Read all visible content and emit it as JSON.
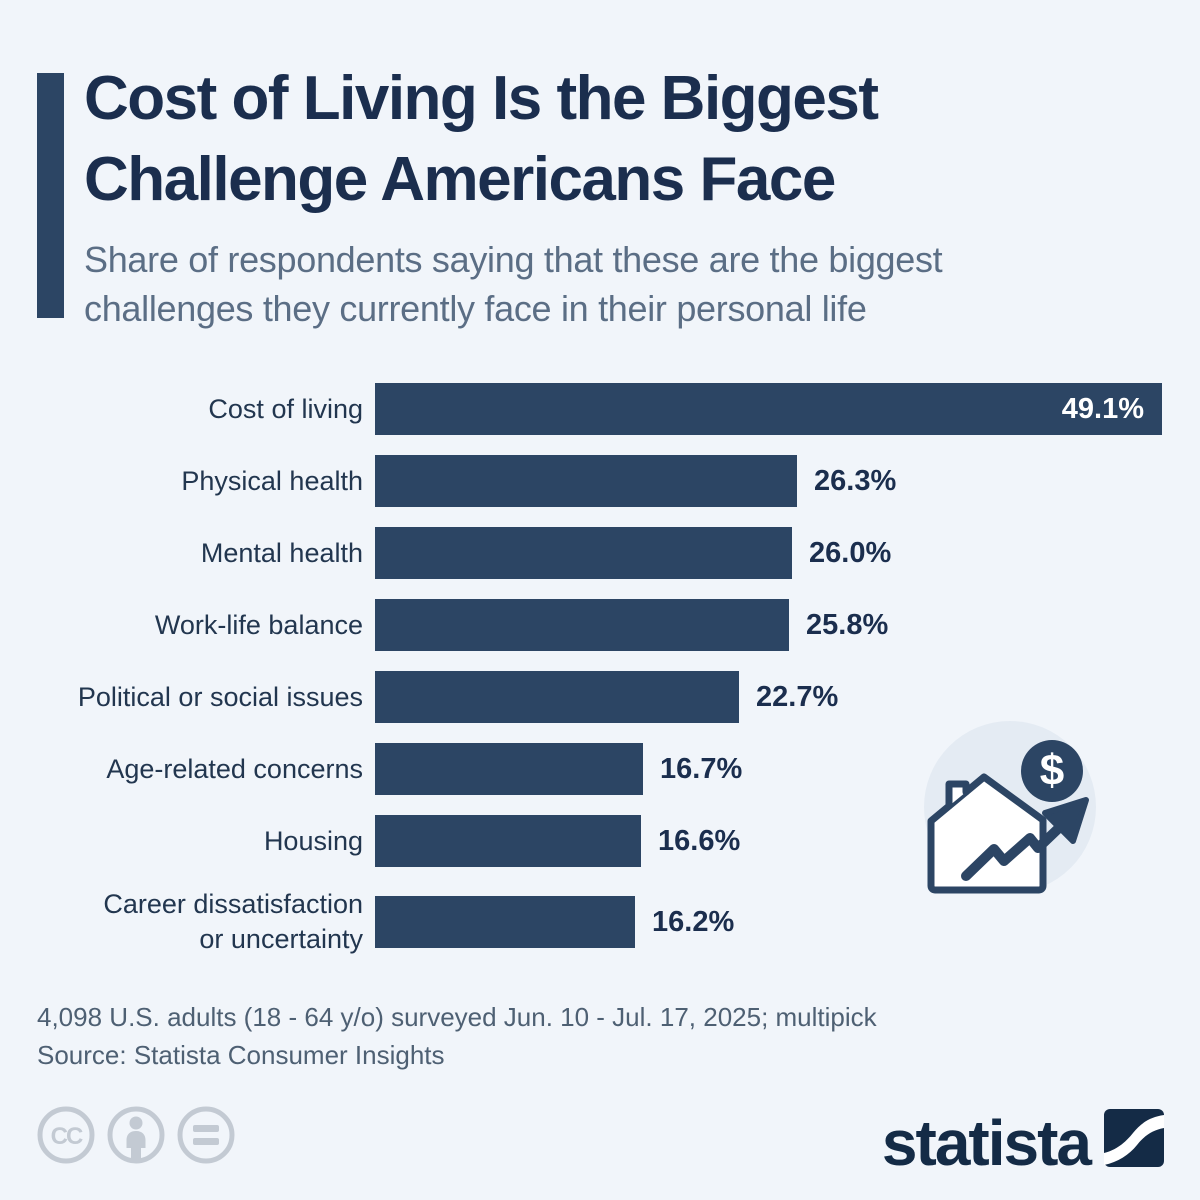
{
  "page": {
    "background_color": "#f1f5fa",
    "accent_color": "#2c4564"
  },
  "header": {
    "title_line1": "Cost of Living Is the Biggest",
    "title_line2": "Challenge Americans Face",
    "subtitle_line1": "Share of respondents saying that these are the biggest",
    "subtitle_line2": "challenges they currently face in their personal life"
  },
  "chart_data": {
    "type": "bar",
    "orientation": "horizontal",
    "title": "Cost of Living Is the Biggest Challenge Americans Face",
    "categories": [
      "Cost of living",
      "Physical health",
      "Mental health",
      "Work-life balance",
      "Political or social issues",
      "Age-related concerns",
      "Housing",
      "Career dissatisfaction or uncertainty"
    ],
    "category_lines": [
      [
        "Cost of living"
      ],
      [
        "Physical health"
      ],
      [
        "Mental health"
      ],
      [
        "Work-life balance"
      ],
      [
        "Political or social issues"
      ],
      [
        "Age-related concerns"
      ],
      [
        "Housing"
      ],
      [
        "Career dissatisfaction",
        "or uncertainty"
      ]
    ],
    "values": [
      49.1,
      26.3,
      26.0,
      25.8,
      22.7,
      16.7,
      16.6,
      16.2
    ],
    "value_labels": [
      "49.1%",
      "26.3%",
      "26.0%",
      "25.8%",
      "22.7%",
      "16.7%",
      "16.6%",
      "16.2%"
    ],
    "value_label_position": [
      "inside",
      "outside",
      "outside",
      "outside",
      "outside",
      "outside",
      "outside",
      "outside"
    ],
    "bar_color": "#2c4564",
    "xlim": [
      0,
      50
    ],
    "grid": false,
    "legend": false
  },
  "icon": {
    "name": "house-price-rising-icon",
    "dollar_symbol": "$"
  },
  "footer": {
    "note_line1": "4,098 U.S. adults (18 - 64 y/o) surveyed Jun. 10 - Jul. 17, 2025; multipick",
    "note_line2": "Source: Statista Consumer Insights",
    "license": {
      "cc_label": "CC",
      "icons": [
        "cc-icon",
        "attribution-icon",
        "equal-icon"
      ]
    },
    "brand": "statista"
  }
}
